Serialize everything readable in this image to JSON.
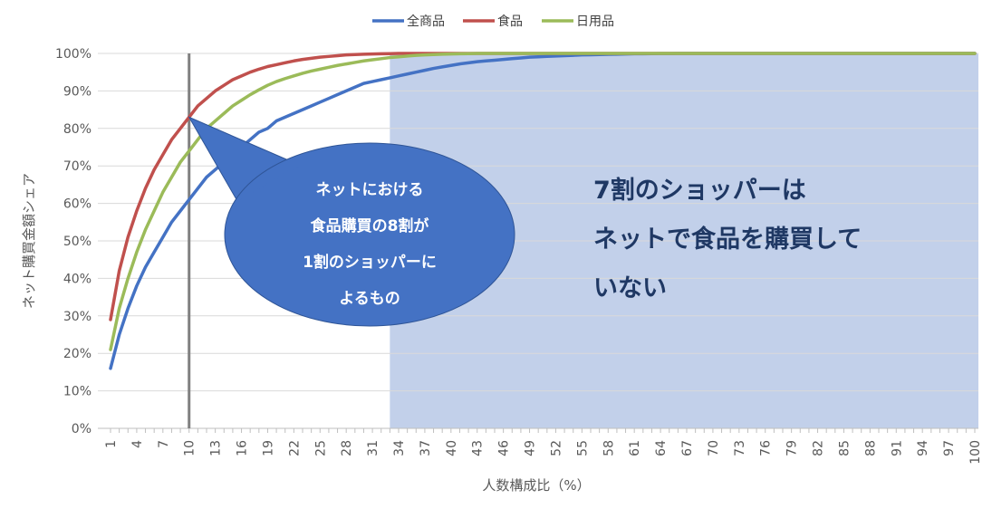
{
  "chart_data": {
    "type": "line",
    "title": "",
    "xlabel": "人数構成比（%）",
    "ylabel": "ネット購買金額シェア",
    "x": [
      1,
      2,
      3,
      4,
      5,
      6,
      7,
      8,
      9,
      10,
      11,
      12,
      13,
      14,
      15,
      16,
      17,
      18,
      19,
      20,
      21,
      22,
      23,
      24,
      25,
      26,
      27,
      28,
      29,
      30,
      31,
      32,
      33,
      34,
      35,
      36,
      37,
      38,
      39,
      40,
      41,
      42,
      43,
      44,
      45,
      46,
      47,
      48,
      49,
      50,
      51,
      52,
      53,
      54,
      55,
      56,
      57,
      58,
      59,
      60,
      61,
      62,
      63,
      64,
      65,
      66,
      67,
      68,
      69,
      70,
      71,
      72,
      73,
      74,
      75,
      76,
      77,
      78,
      79,
      80,
      81,
      82,
      83,
      84,
      85,
      86,
      87,
      88,
      89,
      90,
      91,
      92,
      93,
      94,
      95,
      96,
      97,
      98,
      99,
      100
    ],
    "xlim": [
      1,
      100
    ],
    "ylim": [
      0,
      100
    ],
    "x_tick_labels": [
      "1",
      "4",
      "7",
      "10",
      "13",
      "16",
      "19",
      "22",
      "25",
      "28",
      "31",
      "34",
      "37",
      "40",
      "43",
      "46",
      "49",
      "52",
      "55",
      "58",
      "61",
      "64",
      "67",
      "70",
      "73",
      "76",
      "79",
      "82",
      "85",
      "88",
      "91",
      "94",
      "97",
      "100"
    ],
    "y_tick_labels": [
      "0%",
      "10%",
      "20%",
      "30%",
      "40%",
      "50%",
      "60%",
      "70%",
      "80%",
      "90%",
      "100%"
    ],
    "grid": "horizontal",
    "legend_position": "top-center",
    "series": [
      {
        "name": "全商品",
        "color": "#4472c4",
        "values": [
          16,
          25,
          32,
          38,
          43,
          47,
          51,
          55,
          58,
          61,
          64,
          67,
          69,
          71,
          73,
          75,
          77,
          79,
          80,
          82,
          83,
          84,
          85,
          86,
          87,
          88,
          89,
          90,
          91,
          92,
          92.5,
          93,
          93.5,
          94,
          94.5,
          95,
          95.5,
          96,
          96.4,
          96.8,
          97.2,
          97.5,
          97.8,
          98,
          98.2,
          98.4,
          98.6,
          98.8,
          99,
          99.1,
          99.2,
          99.3,
          99.4,
          99.5,
          99.6,
          99.65,
          99.7,
          99.75,
          99.8,
          99.85,
          99.9,
          99.92,
          99.94,
          99.96,
          99.98,
          100,
          100,
          100,
          100,
          100,
          100,
          100,
          100,
          100,
          100,
          100,
          100,
          100,
          100,
          100,
          100,
          100,
          100,
          100,
          100,
          100,
          100,
          100,
          100,
          100,
          100,
          100,
          100,
          100,
          100,
          100,
          100,
          100,
          100,
          100
        ]
      },
      {
        "name": "食品",
        "color": "#c0504d",
        "values": [
          29,
          42,
          51,
          58,
          64,
          69,
          73,
          77,
          80,
          83,
          86,
          88,
          90,
          91.5,
          93,
          94,
          95,
          95.8,
          96.5,
          97,
          97.5,
          98,
          98.4,
          98.7,
          99,
          99.2,
          99.4,
          99.6,
          99.7,
          99.8,
          99.85,
          99.9,
          99.95,
          100,
          100,
          100,
          100,
          100,
          100,
          100,
          100,
          100,
          100,
          100,
          100,
          100,
          100,
          100,
          100,
          100,
          100,
          100,
          100,
          100,
          100,
          100,
          100,
          100,
          100,
          100,
          100,
          100,
          100,
          100,
          100,
          100,
          100,
          100,
          100,
          100,
          100,
          100,
          100,
          100,
          100,
          100,
          100,
          100,
          100,
          100,
          100,
          100,
          100,
          100,
          100,
          100,
          100,
          100,
          100,
          100,
          100,
          100,
          100,
          100,
          100,
          100,
          100,
          100,
          100,
          100
        ]
      },
      {
        "name": "日用品",
        "color": "#9bbb59",
        "values": [
          21,
          32,
          40,
          47,
          53,
          58,
          63,
          67,
          71,
          74,
          77,
          80,
          82,
          84,
          86,
          87.5,
          89,
          90.3,
          91.5,
          92.5,
          93.3,
          94,
          94.7,
          95.3,
          95.8,
          96.3,
          96.8,
          97.2,
          97.6,
          98,
          98.3,
          98.6,
          98.9,
          99.1,
          99.3,
          99.5,
          99.6,
          99.7,
          99.8,
          99.85,
          99.9,
          99.95,
          100,
          100,
          100,
          100,
          100,
          100,
          100,
          100,
          100,
          100,
          100,
          100,
          100,
          100,
          100,
          100,
          100,
          100,
          100,
          100,
          100,
          100,
          100,
          100,
          100,
          100,
          100,
          100,
          100,
          100,
          100,
          100,
          100,
          100,
          100,
          100,
          100,
          100,
          100,
          100,
          100,
          100,
          100,
          100,
          100,
          100,
          100,
          100,
          100,
          100,
          100,
          100,
          100,
          100,
          100,
          100,
          100,
          100
        ]
      }
    ],
    "highlight_region": {
      "x_from": 33,
      "x_to": 100,
      "color": "#c2d0ea"
    },
    "vertical_marker": {
      "x": 10,
      "color": "#808080"
    },
    "callout": {
      "lines": [
        "ネットにおける",
        "食品購買の8割が",
        "1割のショッパーに",
        "よるもの"
      ],
      "fill": "#4472c4",
      "pointer_x": 10,
      "pointer_y": 83
    },
    "annotation": {
      "lines": [
        "7割のショッパーは",
        "ネットで食品を購買して",
        "いない"
      ],
      "color": "#1f3864"
    }
  }
}
